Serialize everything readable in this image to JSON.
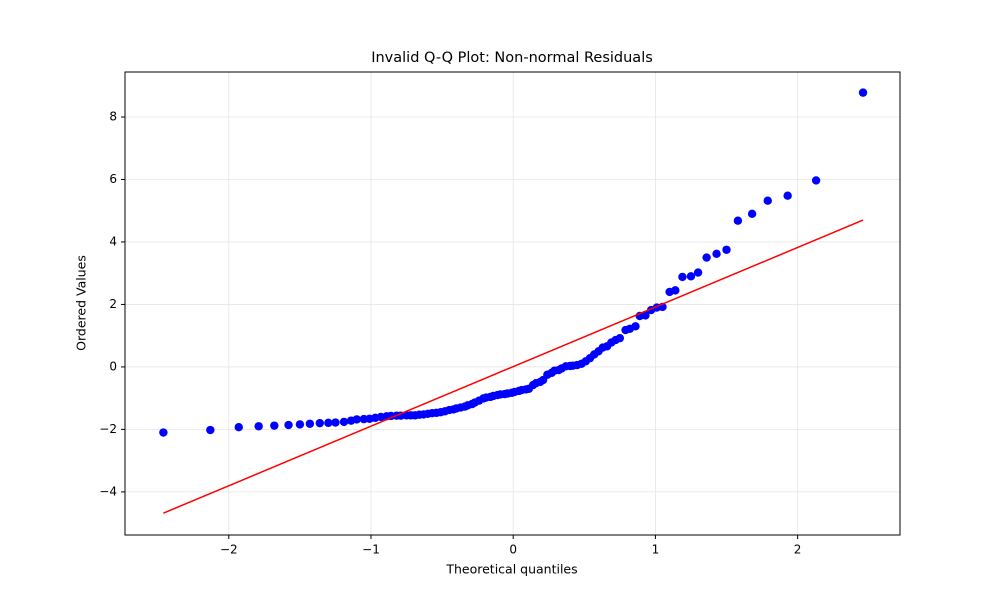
{
  "chart_data": {
    "type": "scatter",
    "title": "Invalid Q-Q Plot: Non-normal Residuals",
    "xlabel": "Theoretical quantiles",
    "ylabel": "Ordered Values",
    "xlim": [
      -2.73,
      2.72
    ],
    "ylim": [
      -5.38,
      9.44
    ],
    "xticks": [
      {
        "value": -2,
        "label": "−2"
      },
      {
        "value": -1,
        "label": "−1"
      },
      0,
      1,
      2
    ],
    "yticks": [
      {
        "value": -4,
        "label": "−4"
      },
      {
        "value": -2,
        "label": "−2"
      },
      0,
      2,
      4,
      6,
      8
    ],
    "grid": true,
    "series": [
      {
        "color": "#0000ff",
        "mode": "markers",
        "x": [
          -2.46,
          -2.13,
          -1.93,
          -1.79,
          -1.68,
          -1.58,
          -1.5,
          -1.43,
          -1.36,
          -1.3,
          -1.25,
          -1.19,
          -1.14,
          -1.1,
          -1.05,
          -1.01,
          -0.97,
          -0.93,
          -0.89,
          -0.86,
          -0.82,
          -0.79,
          -0.75,
          -0.72,
          -0.69,
          -0.66,
          -0.63,
          -0.6,
          -0.57,
          -0.54,
          -0.51,
          -0.48,
          -0.45,
          -0.42,
          -0.4,
          -0.37,
          -0.34,
          -0.32,
          -0.29,
          -0.27,
          -0.24,
          -0.21,
          -0.19,
          -0.16,
          -0.14,
          -0.11,
          -0.09,
          -0.06,
          -0.04,
          -0.01,
          0.01,
          0.04,
          0.06,
          0.09,
          0.11,
          0.14,
          0.16,
          0.19,
          0.21,
          0.24,
          0.27,
          0.29,
          0.32,
          0.34,
          0.37,
          0.4,
          0.42,
          0.45,
          0.48,
          0.51,
          0.54,
          0.57,
          0.6,
          0.63,
          0.66,
          0.69,
          0.72,
          0.75,
          0.79,
          0.82,
          0.86,
          0.89,
          0.93,
          0.97,
          1.01,
          1.05,
          1.1,
          1.14,
          1.19,
          1.25,
          1.3,
          1.36,
          1.43,
          1.5,
          1.58,
          1.68,
          1.79,
          1.93,
          2.13,
          2.46
        ],
        "values": [
          -2.1,
          -2.02,
          -1.93,
          -1.9,
          -1.88,
          -1.86,
          -1.84,
          -1.82,
          -1.8,
          -1.79,
          -1.78,
          -1.76,
          -1.72,
          -1.68,
          -1.67,
          -1.66,
          -1.63,
          -1.6,
          -1.58,
          -1.57,
          -1.56,
          -1.56,
          -1.55,
          -1.55,
          -1.55,
          -1.53,
          -1.52,
          -1.5,
          -1.48,
          -1.47,
          -1.45,
          -1.42,
          -1.38,
          -1.36,
          -1.33,
          -1.3,
          -1.27,
          -1.23,
          -1.19,
          -1.14,
          -1.08,
          -1.01,
          -0.98,
          -0.96,
          -0.93,
          -0.9,
          -0.88,
          -0.87,
          -0.85,
          -0.83,
          -0.8,
          -0.77,
          -0.74,
          -0.72,
          -0.7,
          -0.58,
          -0.52,
          -0.48,
          -0.42,
          -0.25,
          -0.19,
          -0.12,
          -0.1,
          -0.05,
          0.02,
          0.03,
          0.04,
          0.06,
          0.1,
          0.18,
          0.28,
          0.4,
          0.5,
          0.62,
          0.66,
          0.78,
          0.86,
          0.92,
          1.18,
          1.22,
          1.3,
          1.63,
          1.65,
          1.82,
          1.9,
          1.92,
          2.4,
          2.45,
          2.88,
          2.9,
          3.02,
          3.5,
          3.62,
          3.75,
          4.68,
          4.9,
          5.32,
          5.48,
          5.97,
          8.78
        ]
      },
      {
        "color": "#ff0000",
        "mode": "lines",
        "x": [
          -2.46,
          2.46
        ],
        "values": [
          -4.68,
          4.7
        ]
      }
    ]
  }
}
